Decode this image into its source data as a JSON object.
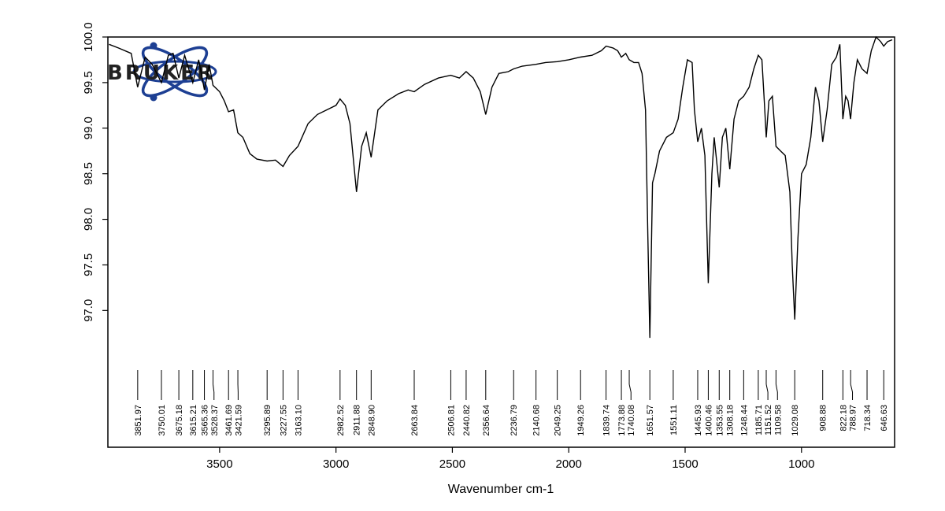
{
  "logo": {
    "text": "BRUKER",
    "color": "#1d3f93"
  },
  "chart_data": {
    "type": "line",
    "xlabel": "Wavenumber cm-1",
    "ylabel": "",
    "xlim": [
      3980,
      600
    ],
    "ylim": [
      95.5,
      100.0
    ],
    "x_axis_reversed": true,
    "x_ticks": [
      3500,
      3000,
      2500,
      2000,
      1500,
      1000
    ],
    "y_ticks": [
      "97.0",
      "97.5",
      "98.0",
      "98.5",
      "99.0",
      "99.5",
      "100.0"
    ],
    "line_color": "#000000",
    "peak_labels": [
      "3851.97",
      "3750.01",
      "3675.18",
      "3615.21",
      "3565.36",
      "3528.37",
      "3461.69",
      "3421.59",
      "3295.89",
      "3227.55",
      "3163.10",
      "2982.52",
      "2911.88",
      "2848.90",
      "2663.84",
      "2506.81",
      "2440.82",
      "2356.64",
      "2236.79",
      "2140.68",
      "2049.25",
      "1949.26",
      "1839.74",
      "1773.88",
      "1740.08",
      "1651.57",
      "1551.11",
      "1445.93",
      "1400.46",
      "1353.55",
      "1308.18",
      "1248.44",
      "1185.71",
      "1151.52",
      "1109.58",
      "1029.08",
      "908.88",
      "822.18",
      "788.97",
      "718.34",
      "646.63"
    ],
    "series": [
      {
        "x": [
          3975,
          3935,
          3880,
          3851.97,
          3820,
          3790,
          3750.01,
          3720,
          3700,
          3675.18,
          3650,
          3615.21,
          3590,
          3565.36,
          3545,
          3528.37,
          3500,
          3480,
          3461.69,
          3440,
          3421.59,
          3400,
          3370,
          3340,
          3295.89,
          3260,
          3227.55,
          3200,
          3163.1,
          3120,
          3080,
          3040,
          3000,
          2982.52,
          2960,
          2940,
          2911.88,
          2890,
          2870,
          2848.9,
          2820,
          2780,
          2730,
          2690,
          2663.84,
          2620,
          2560,
          2506.81,
          2470,
          2440.82,
          2410,
          2380,
          2356.64,
          2330,
          2300,
          2260,
          2236.79,
          2200,
          2140.68,
          2100,
          2049.25,
          2000,
          1949.26,
          1900,
          1860,
          1839.74,
          1810,
          1790,
          1773.88,
          1755,
          1740.08,
          1720,
          1700,
          1685,
          1670,
          1660,
          1651.57,
          1640,
          1630,
          1610,
          1580,
          1551.11,
          1530,
          1510,
          1490,
          1470,
          1460,
          1445.93,
          1430,
          1415,
          1400.46,
          1385,
          1375,
          1365,
          1353.55,
          1340,
          1325,
          1308.18,
          1290,
          1270,
          1248.44,
          1225,
          1205,
          1185.71,
          1170,
          1160,
          1151.52,
          1140,
          1125,
          1109.58,
          1090,
          1070,
          1050,
          1040,
          1029.08,
          1015,
          1000,
          980,
          960,
          940,
          925,
          908.88,
          890,
          870,
          850,
          835,
          822.18,
          810,
          800,
          788.97,
          775,
          760,
          740,
          718.34,
          700,
          680,
          660,
          646.63,
          630,
          610
        ],
        "y": [
          99.92,
          99.88,
          99.82,
          99.45,
          99.78,
          99.7,
          99.5,
          99.8,
          99.82,
          99.55,
          99.8,
          99.5,
          99.75,
          99.42,
          99.7,
          99.47,
          99.4,
          99.3,
          99.18,
          99.2,
          98.95,
          98.9,
          98.72,
          98.66,
          98.64,
          98.65,
          98.58,
          98.7,
          98.8,
          99.05,
          99.15,
          99.2,
          99.25,
          99.32,
          99.25,
          99.05,
          98.3,
          98.8,
          98.95,
          98.68,
          99.2,
          99.3,
          99.38,
          99.42,
          99.4,
          99.48,
          99.55,
          99.58,
          99.55,
          99.62,
          99.55,
          99.4,
          99.15,
          99.45,
          99.6,
          99.62,
          99.65,
          99.68,
          99.7,
          99.72,
          99.73,
          99.75,
          99.78,
          99.8,
          99.85,
          99.9,
          99.88,
          99.85,
          99.78,
          99.82,
          99.75,
          99.72,
          99.72,
          99.6,
          99.2,
          97.8,
          96.7,
          98.4,
          98.5,
          98.75,
          98.9,
          98.95,
          99.1,
          99.45,
          99.75,
          99.72,
          99.2,
          98.85,
          99.0,
          98.7,
          97.3,
          98.5,
          98.9,
          98.65,
          98.35,
          98.9,
          99.0,
          98.55,
          99.1,
          99.3,
          99.35,
          99.45,
          99.65,
          99.8,
          99.75,
          99.3,
          98.9,
          99.3,
          99.35,
          98.8,
          98.75,
          98.7,
          98.3,
          97.5,
          96.9,
          97.8,
          98.5,
          98.6,
          98.9,
          99.45,
          99.3,
          98.85,
          99.2,
          99.7,
          99.78,
          99.92,
          99.1,
          99.35,
          99.3,
          99.1,
          99.5,
          99.75,
          99.65,
          99.6,
          99.85,
          100.0,
          99.95,
          99.9,
          99.95,
          99.97
        ]
      }
    ]
  }
}
